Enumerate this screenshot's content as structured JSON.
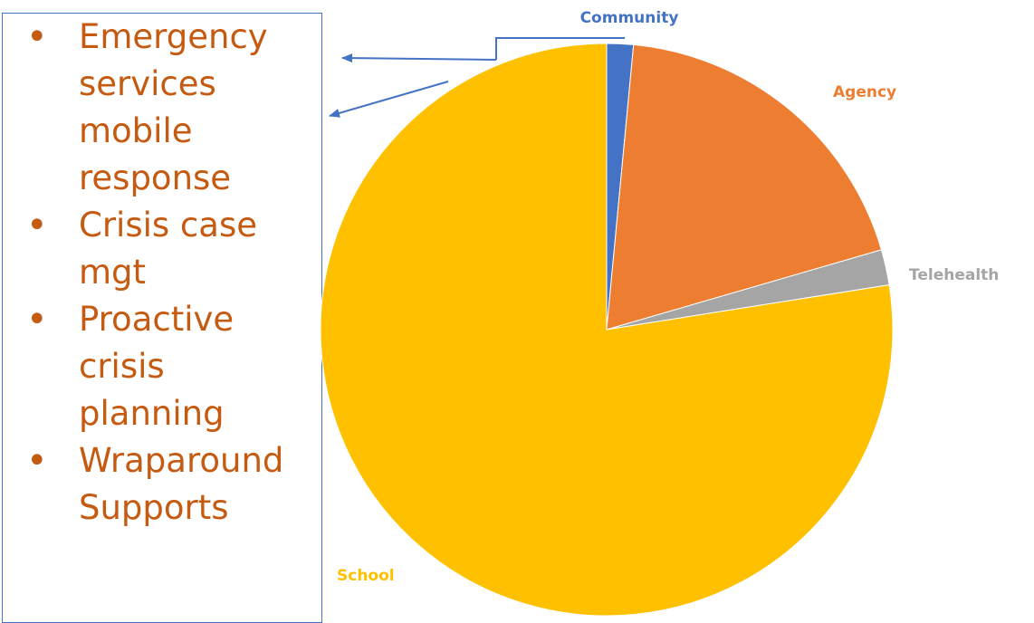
{
  "callout": {
    "items": [
      {
        "text": "Emergency services mobile response"
      },
      {
        "text": "Crisis case mgt"
      },
      {
        "text": "Proactive crisis planning"
      },
      {
        "text": "Wraparound Supports"
      }
    ],
    "bullet_glyph": "•",
    "text_color": "#C55A11",
    "border_color": "#4472C4"
  },
  "chart_data": {
    "type": "pie",
    "title": "",
    "start_angle_deg": 0,
    "direction": "clockwise",
    "slices": [
      {
        "label": "Community",
        "value": 1.5,
        "color": "#4472C4",
        "label_color": "#4472C4"
      },
      {
        "label": "Agency",
        "value": 19,
        "color": "#ED7D31",
        "label_color": "#ED7D31"
      },
      {
        "label": "Telehealth",
        "value": 2,
        "color": "#A5A5A5",
        "label_color": "#A5A5A5"
      },
      {
        "label": "School",
        "value": 77.5,
        "color": "#FFC000",
        "label_color": "#FFC000"
      }
    ],
    "arrow_color": "#4472C4"
  }
}
